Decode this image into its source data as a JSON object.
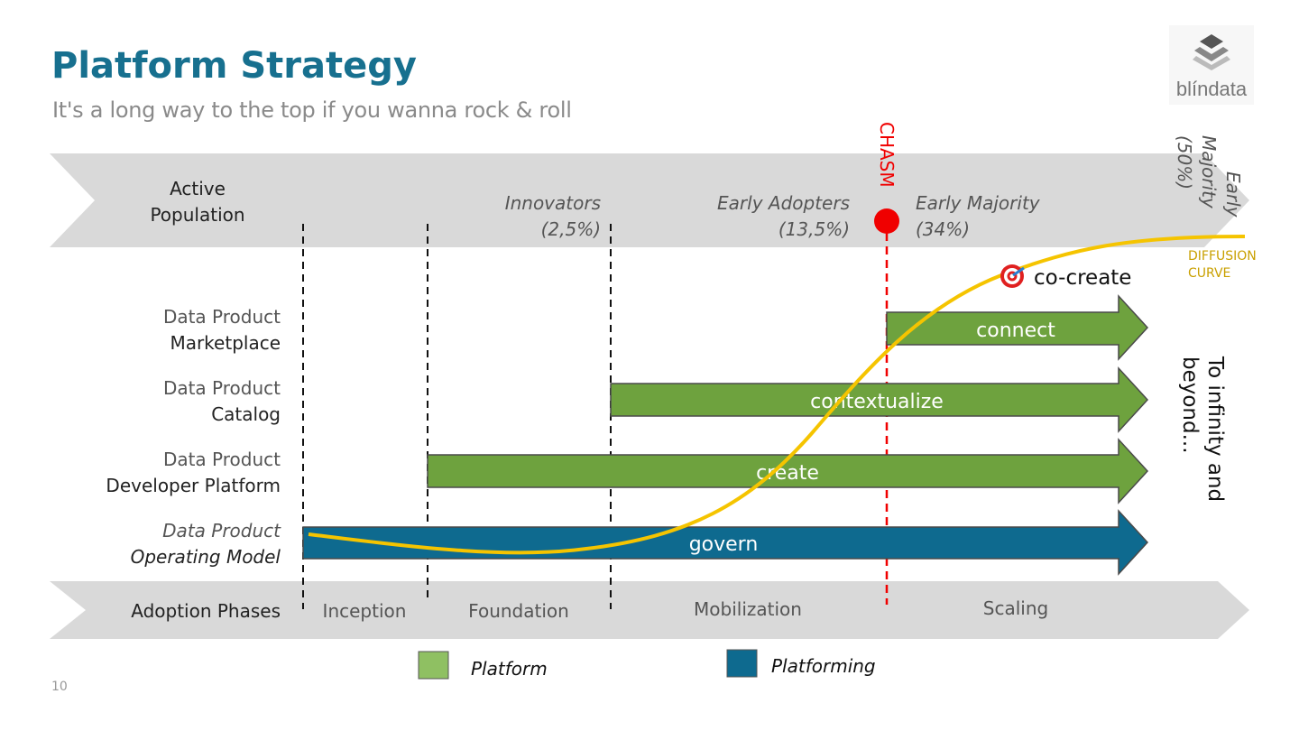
{
  "header": {
    "title": "Platform Strategy",
    "subtitle": "It's a long way to the top if you wanna rock & roll",
    "page_number": "10"
  },
  "logo": {
    "text": "blíndata"
  },
  "population_band": {
    "label_line1": "Active",
    "label_line2": "Population",
    "segments": [
      {
        "line1": "Innovators",
        "line2": "(2,5%)"
      },
      {
        "line1": "Early Adopters",
        "line2": "(13,5%)"
      },
      {
        "line1": "Early Majority",
        "line2": "(34%)"
      },
      {
        "line1": "Early",
        "line2": "Majority",
        "line3": "(50%)"
      }
    ]
  },
  "chasm": {
    "label": "CHASM",
    "color": "#f00000"
  },
  "diffusion_curve": {
    "label_line1": "DIFFUSION",
    "label_line2": "CURVE",
    "color": "#f5c400"
  },
  "co_create": {
    "label": "co-create",
    "icon": "target-icon"
  },
  "rows": [
    {
      "line1": "Data Product",
      "line2": "Marketplace",
      "arrow": "connect",
      "type": "Platform"
    },
    {
      "line1": "Data Product",
      "line2": "Catalog",
      "arrow": "contextualize",
      "type": "Platform"
    },
    {
      "line1": "Data Product",
      "line2": "Developer Platform",
      "arrow": "create",
      "type": "Platform"
    },
    {
      "line1": "Data Product",
      "line2": "Operating Model",
      "arrow": "govern",
      "type": "Platforming"
    }
  ],
  "infinity": {
    "line1": "To infinity and",
    "line2": "beyond..."
  },
  "phases_band": {
    "label": "Adoption Phases",
    "phases": [
      "Inception",
      "Foundation",
      "Mobilization",
      "Scaling"
    ]
  },
  "legend": [
    {
      "label": "Platform",
      "color": "#8fc062"
    },
    {
      "label": "Platforming",
      "color": "#0e6a8f"
    }
  ],
  "colors": {
    "arrow_green": "#6ea23e",
    "arrow_blue": "#0e6a8f",
    "band_gray": "#d9d9d9",
    "title_blue": "#17708f"
  }
}
